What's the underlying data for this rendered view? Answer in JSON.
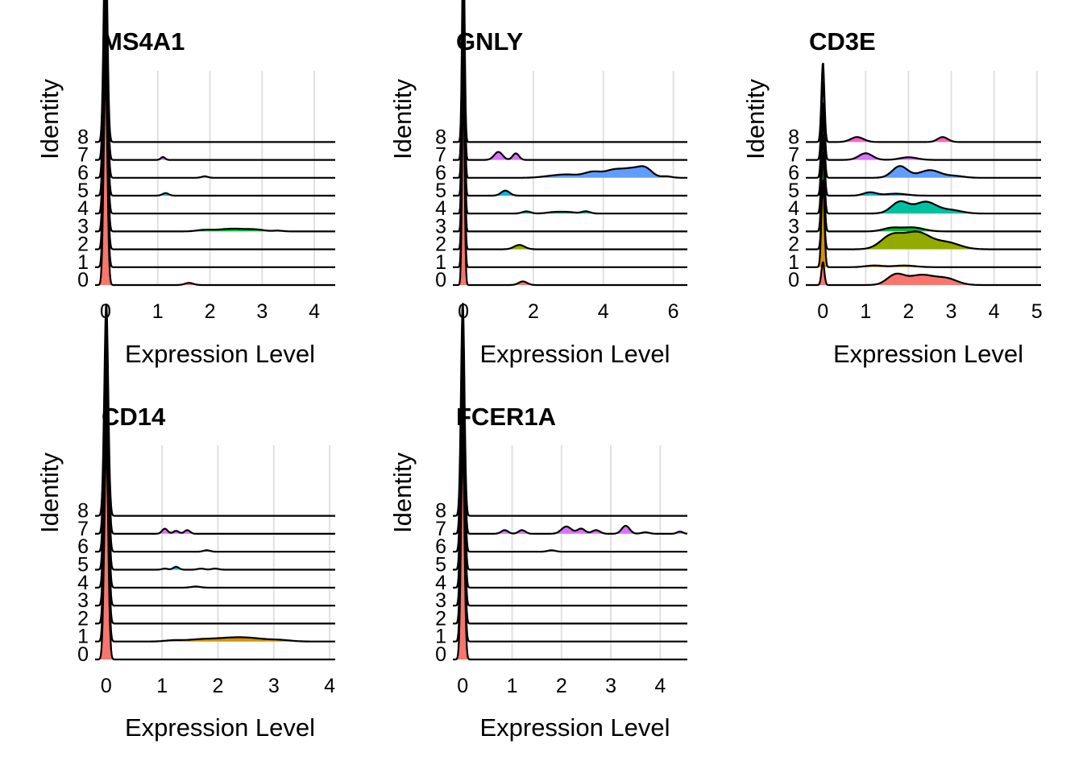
{
  "chart_data": [
    {
      "type": "ridgeline",
      "title": "MS4A1",
      "xlabel": "Expression Level",
      "ylabel": "Identity",
      "xlim": [
        -0.2,
        4.4
      ],
      "xticks": [
        0,
        1,
        2,
        3,
        4
      ],
      "identities": [
        "0",
        "1",
        "2",
        "3",
        "4",
        "5",
        "6",
        "7",
        "8"
      ],
      "series": [
        {
          "identity": "0",
          "color": "#F8766D",
          "zero_peak": 1.0,
          "bumps": [
            [
              1.6,
              0.03,
              0.08
            ]
          ]
        },
        {
          "identity": "1",
          "color": "#D39200",
          "zero_peak": 1.0,
          "bumps": []
        },
        {
          "identity": "2",
          "color": "#93AA00",
          "zero_peak": 1.0,
          "bumps": []
        },
        {
          "identity": "3",
          "color": "#00BA38",
          "zero_peak": 1.0,
          "bumps": [
            [
              1.9,
              0.02,
              0.15
            ],
            [
              2.3,
              0.025,
              0.2
            ],
            [
              2.6,
              0.025,
              0.2
            ],
            [
              2.9,
              0.02,
              0.15
            ],
            [
              3.3,
              0.01,
              0.1
            ]
          ]
        },
        {
          "identity": "4",
          "color": "#00C19F",
          "zero_peak": 1.0,
          "bumps": []
        },
        {
          "identity": "5",
          "color": "#00B9E3",
          "zero_peak": 1.0,
          "bumps": [
            [
              1.15,
              0.035,
              0.06
            ]
          ]
        },
        {
          "identity": "6",
          "color": "#619CFF",
          "zero_peak": 1.0,
          "bumps": [
            [
              1.9,
              0.02,
              0.06
            ]
          ]
        },
        {
          "identity": "7",
          "color": "#DB72FB",
          "zero_peak": 1.0,
          "bumps": [
            [
              1.1,
              0.04,
              0.04
            ]
          ]
        },
        {
          "identity": "8",
          "color": "#FF61C3",
          "zero_peak": 1.0,
          "bumps": []
        }
      ]
    },
    {
      "type": "ridgeline",
      "title": "GNLY",
      "xlabel": "Expression Level",
      "ylabel": "Identity",
      "xlim": [
        -0.3,
        6.4
      ],
      "xticks": [
        0,
        2,
        4,
        6
      ],
      "identities": [
        "0",
        "1",
        "2",
        "3",
        "4",
        "5",
        "6",
        "7",
        "8"
      ],
      "series": [
        {
          "identity": "0",
          "color": "#F8766D",
          "zero_peak": 1.0,
          "bumps": [
            [
              1.7,
              0.05,
              0.12
            ]
          ]
        },
        {
          "identity": "1",
          "color": "#D39200",
          "zero_peak": 1.0,
          "bumps": []
        },
        {
          "identity": "2",
          "color": "#93AA00",
          "zero_peak": 1.0,
          "bumps": [
            [
              1.6,
              0.06,
              0.15
            ]
          ]
        },
        {
          "identity": "3",
          "color": "#00BA38",
          "zero_peak": 1.0,
          "bumps": []
        },
        {
          "identity": "4",
          "color": "#00C19F",
          "zero_peak": 1.0,
          "bumps": [
            [
              1.8,
              0.03,
              0.12
            ],
            [
              2.6,
              0.02,
              0.2
            ],
            [
              3.0,
              0.02,
              0.2
            ],
            [
              3.5,
              0.03,
              0.12
            ]
          ]
        },
        {
          "identity": "5",
          "color": "#00B9E3",
          "zero_peak": 1.0,
          "bumps": [
            [
              1.2,
              0.07,
              0.12
            ]
          ]
        },
        {
          "identity": "6",
          "color": "#619CFF",
          "zero_peak": 1.0,
          "bumps": [
            [
              2.5,
              0.02,
              0.3
            ],
            [
              3.0,
              0.04,
              0.3
            ],
            [
              3.7,
              0.08,
              0.25
            ],
            [
              4.3,
              0.1,
              0.25
            ],
            [
              4.8,
              0.11,
              0.25
            ],
            [
              5.2,
              0.12,
              0.2
            ],
            [
              5.8,
              0.02,
              0.15
            ]
          ]
        },
        {
          "identity": "7",
          "color": "#DB72FB",
          "zero_peak": 1.0,
          "bumps": [
            [
              1.0,
              0.11,
              0.12
            ],
            [
              1.5,
              0.09,
              0.09
            ]
          ]
        },
        {
          "identity": "8",
          "color": "#FF61C3",
          "zero_peak": 1.0,
          "bumps": []
        }
      ]
    },
    {
      "type": "ridgeline",
      "title": "CD3E",
      "xlabel": "Expression Level",
      "ylabel": "Identity",
      "xlim": [
        -0.4,
        5.1
      ],
      "xticks": [
        0,
        1,
        2,
        3,
        4,
        5
      ],
      "identities": [
        "0",
        "1",
        "2",
        "3",
        "4",
        "5",
        "6",
        "7",
        "8"
      ],
      "series": [
        {
          "identity": "0",
          "color": "#F8766D",
          "zero_peak": 0.55,
          "bumps": [
            [
              1.7,
              0.3,
              0.2
            ],
            [
              2.3,
              0.3,
              0.3
            ],
            [
              2.9,
              0.18,
              0.25
            ]
          ]
        },
        {
          "identity": "1",
          "color": "#D39200",
          "zero_peak": 2.1,
          "bumps": [
            [
              1.2,
              0.05,
              0.2
            ],
            [
              1.9,
              0.05,
              0.25
            ]
          ]
        },
        {
          "identity": "2",
          "color": "#93AA00",
          "zero_peak": 1.3,
          "bumps": [
            [
              1.6,
              0.4,
              0.25
            ],
            [
              2.2,
              0.5,
              0.3
            ],
            [
              2.9,
              0.2,
              0.3
            ]
          ]
        },
        {
          "identity": "3",
          "color": "#00BA38",
          "zero_peak": 1.9,
          "bumps": [
            [
              1.6,
              0.1,
              0.2
            ],
            [
              2.1,
              0.12,
              0.25
            ]
          ]
        },
        {
          "identity": "4",
          "color": "#00C19F",
          "zero_peak": 1.9,
          "bumps": [
            [
              1.8,
              0.35,
              0.2
            ],
            [
              2.4,
              0.35,
              0.25
            ],
            [
              3.0,
              0.1,
              0.25
            ]
          ]
        },
        {
          "identity": "5",
          "color": "#00B9E3",
          "zero_peak": 1.9,
          "bumps": [
            [
              1.1,
              0.1,
              0.15
            ],
            [
              1.7,
              0.06,
              0.25
            ]
          ]
        },
        {
          "identity": "6",
          "color": "#619CFF",
          "zero_peak": 1.8,
          "bumps": [
            [
              1.8,
              0.35,
              0.18
            ],
            [
              2.5,
              0.23,
              0.25
            ],
            [
              3.1,
              0.05,
              0.2
            ]
          ]
        },
        {
          "identity": "7",
          "color": "#DB72FB",
          "zero_peak": 1.9,
          "bumps": [
            [
              1.0,
              0.2,
              0.16
            ],
            [
              2.0,
              0.08,
              0.2
            ]
          ]
        },
        {
          "identity": "8",
          "color": "#FF61C3",
          "zero_peak": 1.9,
          "bumps": [
            [
              0.8,
              0.15,
              0.15
            ],
            [
              2.8,
              0.15,
              0.12
            ]
          ]
        }
      ]
    },
    {
      "type": "ridgeline",
      "title": "CD14",
      "xlabel": "Expression Level",
      "ylabel": "Identity",
      "xlim": [
        -0.2,
        4.1
      ],
      "xticks": [
        0,
        1,
        2,
        3,
        4
      ],
      "identities": [
        "0",
        "1",
        "2",
        "3",
        "4",
        "5",
        "6",
        "7",
        "8"
      ],
      "series": [
        {
          "identity": "0",
          "color": "#F8766D",
          "zero_peak": 1.0,
          "bumps": []
        },
        {
          "identity": "1",
          "color": "#D39200",
          "zero_peak": 1.0,
          "bumps": [
            [
              1.2,
              0.015,
              0.15
            ],
            [
              1.7,
              0.03,
              0.25
            ],
            [
              2.2,
              0.04,
              0.25
            ],
            [
              2.6,
              0.04,
              0.25
            ],
            [
              3.1,
              0.02,
              0.2
            ]
          ]
        },
        {
          "identity": "2",
          "color": "#93AA00",
          "zero_peak": 1.0,
          "bumps": []
        },
        {
          "identity": "3",
          "color": "#00BA38",
          "zero_peak": 1.0,
          "bumps": []
        },
        {
          "identity": "4",
          "color": "#00C19F",
          "zero_peak": 1.0,
          "bumps": [
            [
              1.6,
              0.015,
              0.08
            ]
          ]
        },
        {
          "identity": "5",
          "color": "#00B9E3",
          "zero_peak": 1.0,
          "bumps": [
            [
              1.05,
              0.015,
              0.05
            ],
            [
              1.25,
              0.04,
              0.05
            ],
            [
              1.7,
              0.015,
              0.06
            ],
            [
              1.95,
              0.015,
              0.06
            ]
          ]
        },
        {
          "identity": "6",
          "color": "#619CFF",
          "zero_peak": 1.0,
          "bumps": [
            [
              1.8,
              0.02,
              0.06
            ]
          ]
        },
        {
          "identity": "7",
          "color": "#DB72FB",
          "zero_peak": 1.0,
          "bumps": [
            [
              1.05,
              0.07,
              0.05
            ],
            [
              1.25,
              0.04,
              0.05
            ],
            [
              1.45,
              0.05,
              0.05
            ]
          ]
        },
        {
          "identity": "8",
          "color": "#FF61C3",
          "zero_peak": 1.0,
          "bumps": []
        }
      ]
    },
    {
      "type": "ridgeline",
      "title": "FCER1A",
      "xlabel": "Expression Level",
      "ylabel": "Identity",
      "xlim": [
        -0.2,
        4.55
      ],
      "xticks": [
        0,
        1,
        2,
        3,
        4
      ],
      "identities": [
        "0",
        "1",
        "2",
        "3",
        "4",
        "5",
        "6",
        "7",
        "8"
      ],
      "series": [
        {
          "identity": "0",
          "color": "#F8766D",
          "zero_peak": 1.0,
          "bumps": []
        },
        {
          "identity": "1",
          "color": "#D39200",
          "zero_peak": 1.0,
          "bumps": []
        },
        {
          "identity": "2",
          "color": "#93AA00",
          "zero_peak": 1.0,
          "bumps": []
        },
        {
          "identity": "3",
          "color": "#00BA38",
          "zero_peak": 1.0,
          "bumps": []
        },
        {
          "identity": "4",
          "color": "#00C19F",
          "zero_peak": 1.0,
          "bumps": []
        },
        {
          "identity": "5",
          "color": "#00B9E3",
          "zero_peak": 1.0,
          "bumps": []
        },
        {
          "identity": "6",
          "color": "#619CFF",
          "zero_peak": 1.0,
          "bumps": [
            [
              1.8,
              0.02,
              0.08
            ]
          ]
        },
        {
          "identity": "7",
          "color": "#DB72FB",
          "zero_peak": 1.0,
          "bumps": [
            [
              0.85,
              0.05,
              0.07
            ],
            [
              1.2,
              0.05,
              0.07
            ],
            [
              2.1,
              0.1,
              0.1
            ],
            [
              2.4,
              0.07,
              0.08
            ],
            [
              2.7,
              0.05,
              0.08
            ],
            [
              3.3,
              0.11,
              0.08
            ],
            [
              3.7,
              0.02,
              0.08
            ],
            [
              4.4,
              0.03,
              0.06
            ]
          ]
        },
        {
          "identity": "8",
          "color": "#FF61C3",
          "zero_peak": 1.0,
          "bumps": []
        }
      ]
    }
  ]
}
